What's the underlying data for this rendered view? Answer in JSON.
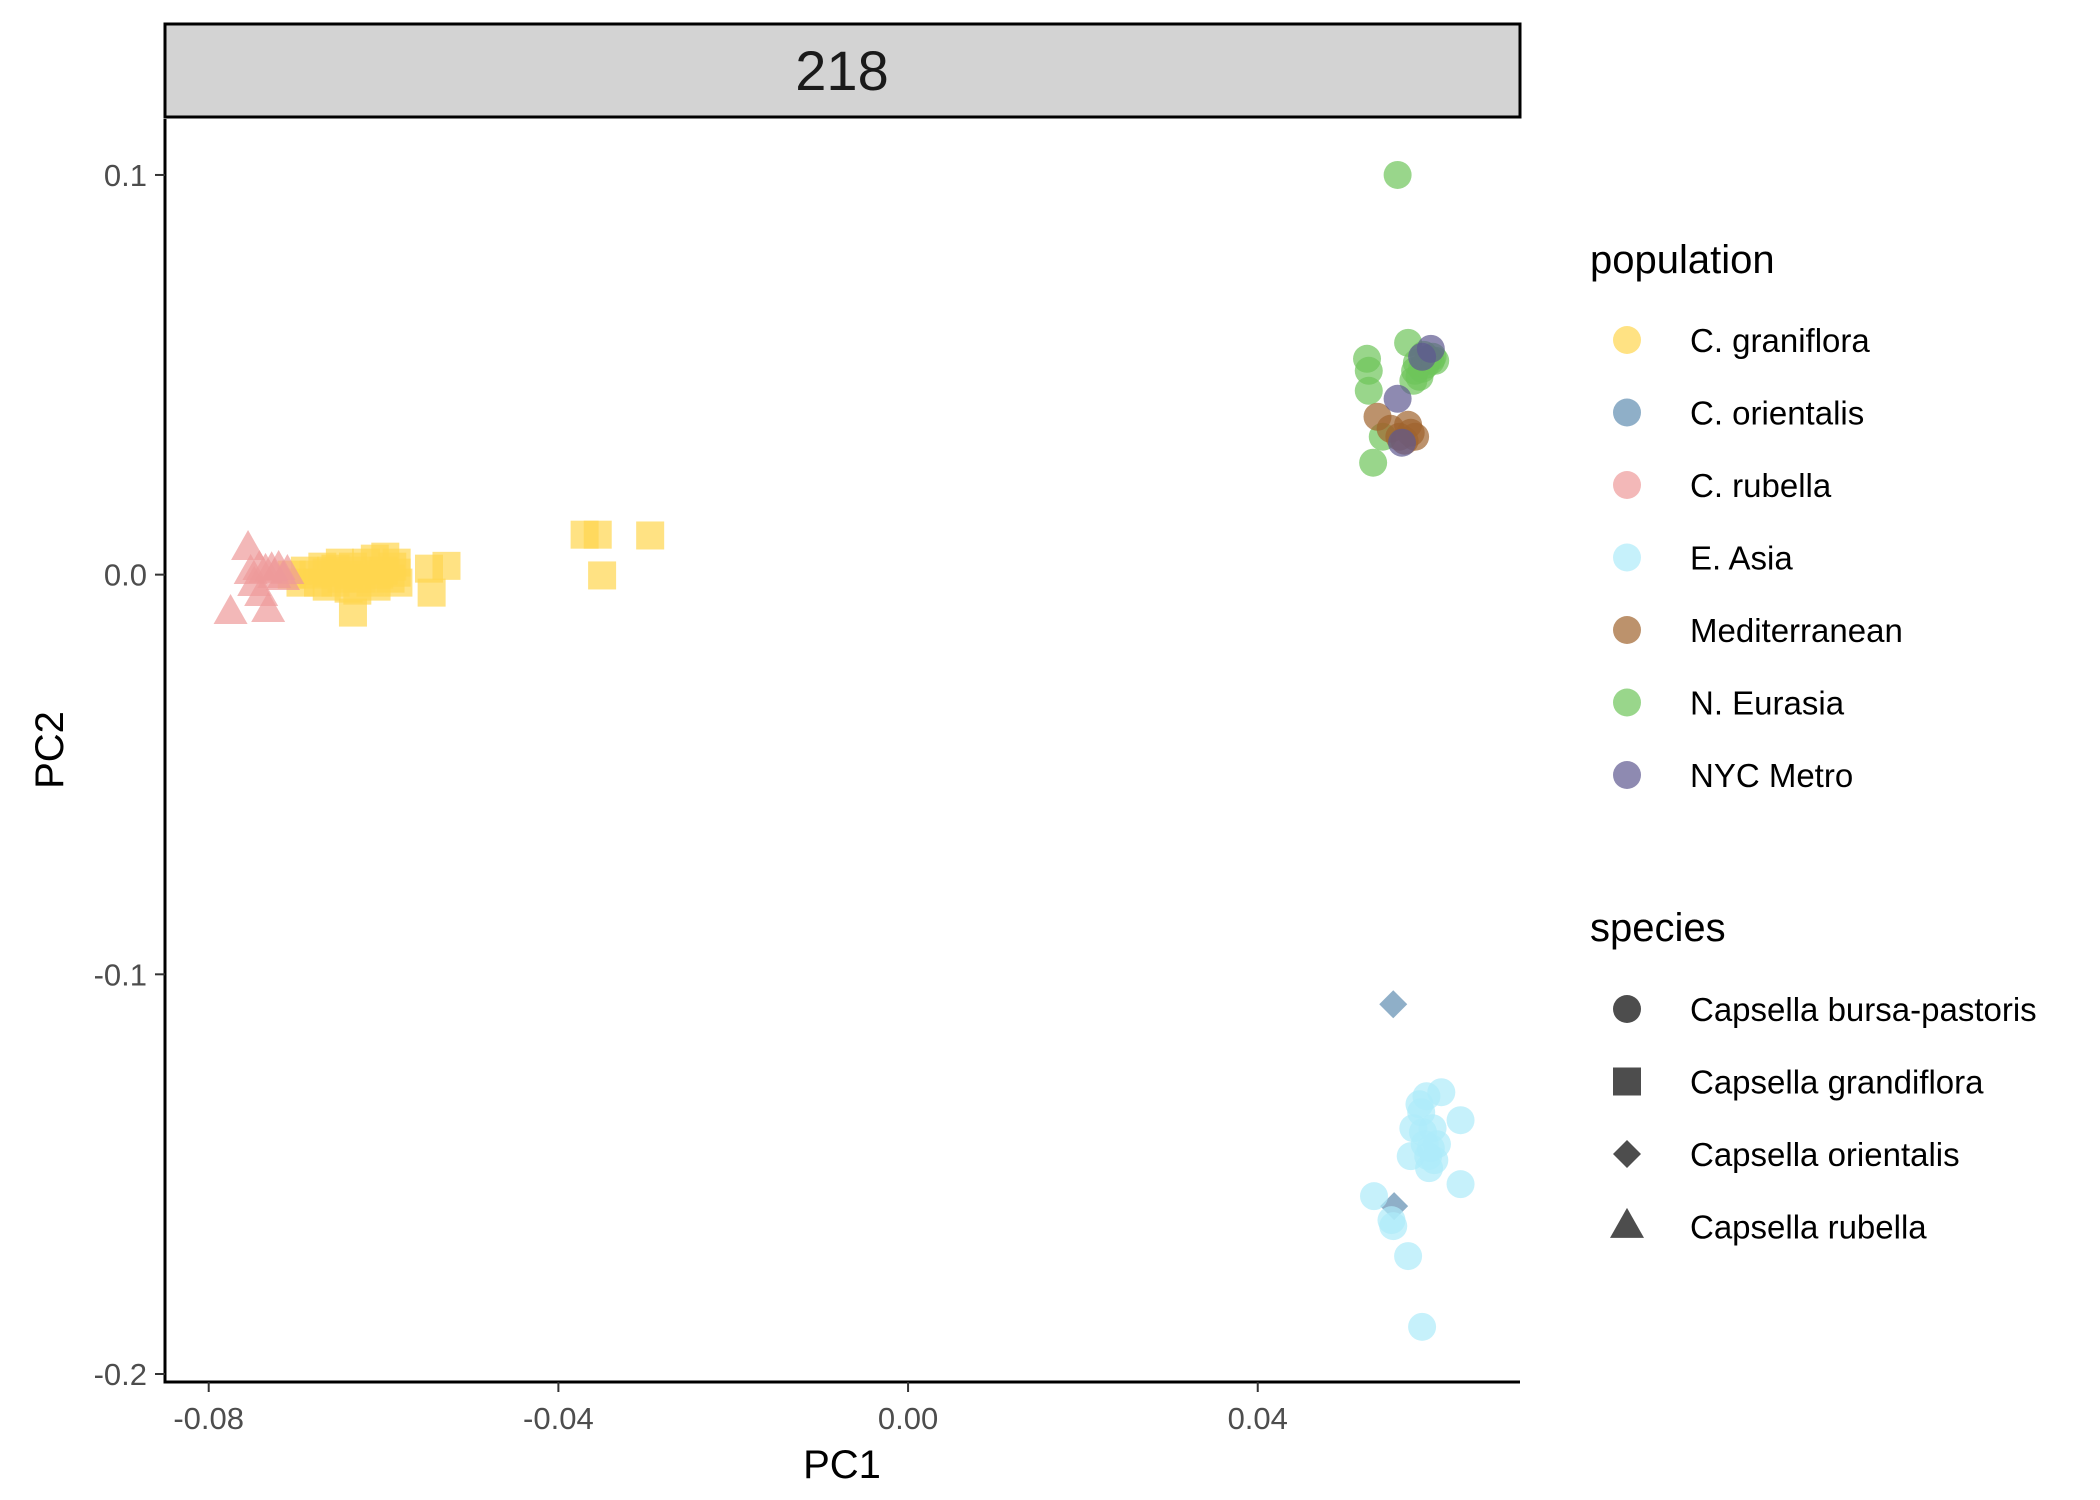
{
  "chart_data": {
    "type": "scatter",
    "facet_label": "218",
    "xlabel": "PC1",
    "ylabel": "PC2",
    "xlim": [
      -0.085,
      0.07
    ],
    "ylim": [
      -0.202,
      0.114
    ],
    "x_ticks": [
      -0.08,
      -0.04,
      0.0,
      0.04
    ],
    "x_tick_labels": [
      "-0.08",
      "-0.04",
      "0.00",
      "0.04"
    ],
    "y_ticks": [
      0.1,
      0.0,
      -0.1,
      -0.2
    ],
    "y_tick_labels": [
      "0.1",
      "0.0",
      "-0.1",
      "-0.2"
    ],
    "grid": false,
    "legend_position": "right",
    "legends": {
      "population": {
        "title": "population",
        "entries": [
          {
            "label": "C. graniflora",
            "color": "#FFD54F"
          },
          {
            "label": "C. orientalis",
            "color": "#5F8DB0"
          },
          {
            "label": "C. rubella",
            "color": "#EE9A9A"
          },
          {
            "label": "E. Asia",
            "color": "#AEEBFA"
          },
          {
            "label": "Mediterranean",
            "color": "#A0642D"
          },
          {
            "label": "N. Eurasia",
            "color": "#6EC45A"
          },
          {
            "label": "NYC Metro",
            "color": "#5E5890"
          }
        ]
      },
      "species": {
        "title": "species",
        "entries": [
          {
            "label": "Capsella bursa-pastoris",
            "shape": "circle"
          },
          {
            "label": "Capsella grandiflora",
            "shape": "square"
          },
          {
            "label": "Capsella orientalis",
            "shape": "diamond"
          },
          {
            "label": "Capsella rubella",
            "shape": "triangle"
          }
        ]
      }
    },
    "series": [
      {
        "population": "C. graniflora",
        "species": "Capsella grandiflora",
        "points": [
          [
            -0.0705,
            0.0
          ],
          [
            -0.0695,
            -0.002
          ],
          [
            -0.069,
            0.001
          ],
          [
            -0.068,
            0.0
          ],
          [
            -0.0675,
            -0.002
          ],
          [
            -0.067,
            0.002
          ],
          [
            -0.0665,
            -0.003
          ],
          [
            -0.066,
            0.001
          ],
          [
            -0.0655,
            -0.002
          ],
          [
            -0.065,
            0.003
          ],
          [
            -0.0648,
            -0.001
          ],
          [
            -0.064,
            0.0
          ],
          [
            -0.0635,
            0.002
          ],
          [
            -0.063,
            -0.004
          ],
          [
            -0.0628,
            0.001
          ],
          [
            -0.062,
            0.003
          ],
          [
            -0.0615,
            -0.002
          ],
          [
            -0.061,
            0.004
          ],
          [
            -0.0608,
            -0.003
          ],
          [
            -0.06,
            0.001
          ],
          [
            -0.0598,
            0.0045
          ],
          [
            -0.0592,
            -0.001
          ],
          [
            -0.059,
            0.002
          ],
          [
            -0.0585,
            0.003
          ],
          [
            -0.0583,
            -0.002
          ],
          [
            -0.0585,
            0.0005
          ],
          [
            -0.0625,
            -0.001
          ],
          [
            -0.0605,
            0.0
          ],
          [
            -0.0665,
            0.0005
          ],
          [
            -0.0655,
            0.0015
          ],
          [
            -0.064,
            -0.0035
          ],
          [
            -0.0635,
            -0.0095
          ],
          [
            -0.0545,
            -0.0045
          ],
          [
            -0.0548,
            0.0015
          ],
          [
            -0.0528,
            0.0022
          ],
          [
            -0.037,
            0.01
          ],
          [
            -0.0355,
            0.01
          ],
          [
            -0.035,
            -0.0002
          ],
          [
            -0.0295,
            0.0098
          ]
        ]
      },
      {
        "population": "C. rubella",
        "species": "Capsella rubella",
        "points": [
          [
            -0.0775,
            -0.0095
          ],
          [
            -0.0755,
            0.0065
          ],
          [
            -0.0752,
            0.0005
          ],
          [
            -0.0748,
            -0.0025
          ],
          [
            -0.0742,
            0.0015
          ],
          [
            -0.074,
            -0.005
          ],
          [
            -0.0735,
            0.0008
          ],
          [
            -0.0732,
            -0.009
          ],
          [
            -0.0728,
            0.0012
          ],
          [
            -0.0725,
            -0.0005
          ],
          [
            -0.072,
            0.0015
          ],
          [
            -0.0715,
            -0.001
          ],
          [
            -0.071,
            0.0005
          ]
        ]
      },
      {
        "population": "N. Eurasia",
        "species": "Capsella bursa-pastoris",
        "points": [
          [
            0.056,
            0.1
          ],
          [
            0.0525,
            0.054
          ],
          [
            0.0527,
            0.051
          ],
          [
            0.0527,
            0.046
          ],
          [
            0.0532,
            0.028
          ],
          [
            0.0543,
            0.0345
          ],
          [
            0.0572,
            0.058
          ],
          [
            0.0578,
            0.0485
          ],
          [
            0.058,
            0.051
          ],
          [
            0.0582,
            0.053
          ],
          [
            0.0585,
            0.0495
          ],
          [
            0.0588,
            0.0515
          ],
          [
            0.059,
            0.055
          ],
          [
            0.0592,
            0.0525
          ],
          [
            0.0595,
            0.054
          ],
          [
            0.0598,
            0.0535
          ],
          [
            0.06,
            0.0545
          ],
          [
            0.0603,
            0.0535
          ]
        ]
      },
      {
        "population": "Mediterranean",
        "species": "Capsella bursa-pastoris",
        "points": [
          [
            0.0537,
            0.0395
          ],
          [
            0.0552,
            0.0365
          ],
          [
            0.0562,
            0.0345
          ],
          [
            0.0568,
            0.0335
          ],
          [
            0.0572,
            0.0375
          ],
          [
            0.0575,
            0.0355
          ],
          [
            0.058,
            0.0345
          ]
        ]
      },
      {
        "population": "NYC Metro",
        "species": "Capsella bursa-pastoris",
        "points": [
          [
            0.056,
            0.044
          ],
          [
            0.0565,
            0.033
          ],
          [
            0.0588,
            0.0545
          ],
          [
            0.0598,
            0.0565
          ]
        ]
      },
      {
        "population": "C. orientalis",
        "species": "Capsella orientalis",
        "points": [
          [
            0.0555,
            -0.1075
          ],
          [
            0.0556,
            -0.158
          ]
        ]
      },
      {
        "population": "E. Asia",
        "species": "Capsella bursa-pastoris",
        "points": [
          [
            0.0533,
            -0.1555
          ],
          [
            0.0553,
            -0.1615
          ],
          [
            0.0555,
            -0.163
          ],
          [
            0.0572,
            -0.1705
          ],
          [
            0.0575,
            -0.1455
          ],
          [
            0.0578,
            -0.1385
          ],
          [
            0.0585,
            -0.1325
          ],
          [
            0.0587,
            -0.1345
          ],
          [
            0.0589,
            -0.1395
          ],
          [
            0.0591,
            -0.1425
          ],
          [
            0.0593,
            -0.1305
          ],
          [
            0.0595,
            -0.1455
          ],
          [
            0.0596,
            -0.1485
          ],
          [
            0.0598,
            -0.1435
          ],
          [
            0.06,
            -0.1385
          ],
          [
            0.0602,
            -0.1465
          ],
          [
            0.0605,
            -0.1425
          ],
          [
            0.061,
            -0.1295
          ],
          [
            0.0632,
            -0.1365
          ],
          [
            0.0632,
            -0.1525
          ],
          [
            0.0588,
            -0.1882
          ]
        ]
      }
    ]
  }
}
